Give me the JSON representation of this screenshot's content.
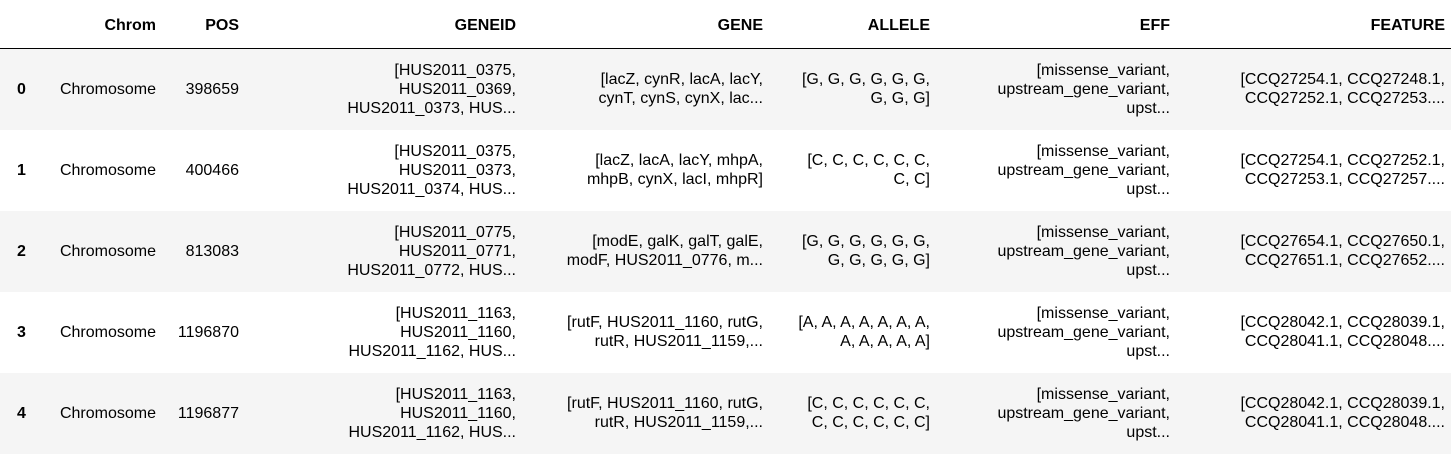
{
  "table": {
    "columns": [
      "",
      "Chrom",
      "POS",
      "GENEID",
      "GENE",
      "ALLELE",
      "EFF",
      "FEATURE"
    ],
    "rows": [
      {
        "index": "0",
        "chrom": "Chromosome",
        "pos": "398659",
        "geneid": [
          "[HUS2011_0375,",
          "HUS2011_0369,",
          "HUS2011_0373, HUS..."
        ],
        "gene": [
          "[lacZ, cynR, lacA, lacY,",
          "cynT, cynS, cynX, lac..."
        ],
        "allele": [
          "[G, G, G, G, G, G,",
          "G, G, G]"
        ],
        "eff": [
          "[missense_variant,",
          "upstream_gene_variant,",
          "upst..."
        ],
        "feature": [
          "[CCQ27254.1, CCQ27248.1,",
          "CCQ27252.1, CCQ27253...."
        ]
      },
      {
        "index": "1",
        "chrom": "Chromosome",
        "pos": "400466",
        "geneid": [
          "[HUS2011_0375,",
          "HUS2011_0373,",
          "HUS2011_0374, HUS..."
        ],
        "gene": [
          "[lacZ, lacA, lacY, mhpA,",
          "mhpB, cynX, lacI, mhpR]"
        ],
        "allele": [
          "[C, C, C, C, C, C,",
          "C, C]"
        ],
        "eff": [
          "[missense_variant,",
          "upstream_gene_variant,",
          "upst..."
        ],
        "feature": [
          "[CCQ27254.1, CCQ27252.1,",
          "CCQ27253.1, CCQ27257...."
        ]
      },
      {
        "index": "2",
        "chrom": "Chromosome",
        "pos": "813083",
        "geneid": [
          "[HUS2011_0775,",
          "HUS2011_0771,",
          "HUS2011_0772, HUS..."
        ],
        "gene": [
          "[modE, galK, galT, galE,",
          "modF, HUS2011_0776, m..."
        ],
        "allele": [
          "[G, G, G, G, G, G,",
          "G, G, G, G, G]"
        ],
        "eff": [
          "[missense_variant,",
          "upstream_gene_variant,",
          "upst..."
        ],
        "feature": [
          "[CCQ27654.1, CCQ27650.1,",
          "CCQ27651.1, CCQ27652...."
        ]
      },
      {
        "index": "3",
        "chrom": "Chromosome",
        "pos": "1196870",
        "geneid": [
          "[HUS2011_1163,",
          "HUS2011_1160,",
          "HUS2011_1162, HUS..."
        ],
        "gene": [
          "[rutF, HUS2011_1160, rutG,",
          "rutR, HUS2011_1159,..."
        ],
        "allele": [
          "[A, A, A, A, A, A, A,",
          "A, A, A, A, A]"
        ],
        "eff": [
          "[missense_variant,",
          "upstream_gene_variant,",
          "upst..."
        ],
        "feature": [
          "[CCQ28042.1, CCQ28039.1,",
          "CCQ28041.1, CCQ28048...."
        ]
      },
      {
        "index": "4",
        "chrom": "Chromosome",
        "pos": "1196877",
        "geneid": [
          "[HUS2011_1163,",
          "HUS2011_1160,",
          "HUS2011_1162, HUS..."
        ],
        "gene": [
          "[rutF, HUS2011_1160, rutG,",
          "rutR, HUS2011_1159,..."
        ],
        "allele": [
          "[C, C, C, C, C, C,",
          "C, C, C, C, C, C]"
        ],
        "eff": [
          "[missense_variant,",
          "upstream_gene_variant,",
          "upst..."
        ],
        "feature": [
          "[CCQ28042.1, CCQ28039.1,",
          "CCQ28041.1, CCQ28048...."
        ]
      }
    ]
  },
  "colors": {
    "row_odd": "#f5f5f5",
    "row_even": "#ffffff",
    "header_rule": "#000000",
    "text": "#000000"
  }
}
